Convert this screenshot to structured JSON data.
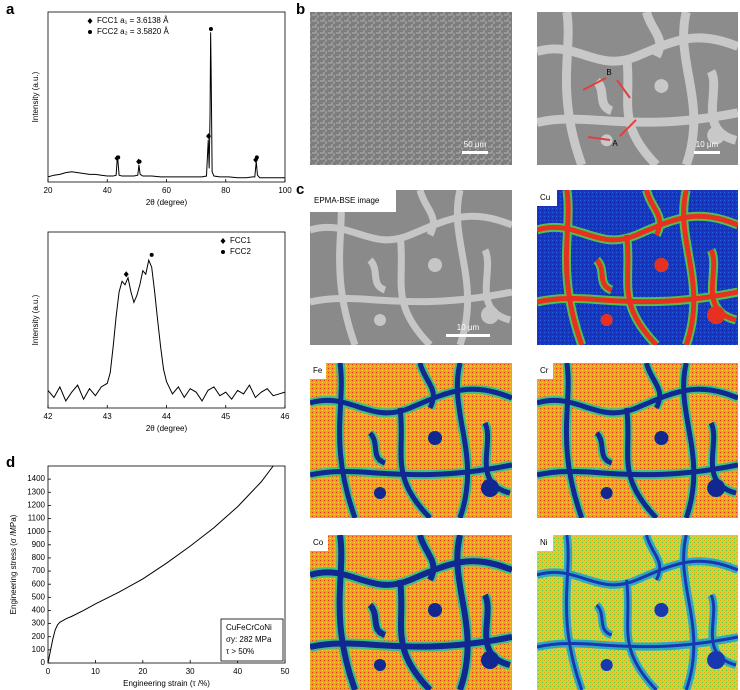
{
  "panel_labels": [
    "a",
    "b",
    "c",
    "d"
  ],
  "micrographs": [
    {
      "scale_bar": "50 μm"
    },
    {
      "scale_bar": "10 μm",
      "annotations": [
        "B",
        "A"
      ]
    }
  ],
  "maps": [
    {
      "label": "EPMA-BSE image",
      "scale_bar": "10 μm"
    },
    {
      "label": "Cu"
    },
    {
      "label": "Fe"
    },
    {
      "label": "Cr"
    },
    {
      "label": "Co"
    },
    {
      "label": "Ni"
    }
  ],
  "chart_data": [
    {
      "type": "line",
      "xlabel": "2θ (degree)",
      "ylabel": "Intensity (a.u.)",
      "color": "#000000",
      "xlim": [
        20,
        100
      ],
      "xticks": [
        20,
        40,
        60,
        80,
        100
      ],
      "ylim": [
        0,
        100
      ],
      "legend": "upper left",
      "x": [
        20,
        22,
        24,
        26,
        28,
        30,
        32,
        34,
        36,
        38,
        40,
        42,
        43,
        43.3,
        43.6,
        44,
        45,
        47,
        49,
        50.3,
        50.7,
        51.1,
        52,
        55,
        58,
        61,
        64,
        67,
        70,
        72,
        73.5,
        74.1,
        74.4,
        74.7,
        74.9,
        75.1,
        75.4,
        76,
        78,
        81,
        84,
        87,
        89,
        89.8,
        90.3,
        90.7,
        91.5,
        94,
        97,
        100
      ],
      "values": [
        3,
        4,
        4.5,
        5.5,
        6,
        5.5,
        5,
        4.5,
        4.5,
        4,
        3.5,
        3.5,
        4,
        12,
        12.5,
        4,
        3.5,
        3.5,
        3.5,
        4,
        10,
        4.5,
        3.5,
        3.5,
        3,
        3,
        3,
        3,
        3,
        3,
        3.5,
        25,
        8,
        40,
        88,
        60,
        6,
        3.5,
        3,
        3,
        2.5,
        2.5,
        3,
        3,
        12,
        4,
        2.5,
        2.5,
        2.5,
        2.5
      ],
      "markers": [
        {
          "name": "FCC1 a₁ = 3.6138 Å",
          "symbol": "diamond",
          "x": [
            43.3,
            50.6,
            74.2,
            90.1
          ],
          "values": [
            14,
            12,
            27,
            13
          ]
        },
        {
          "name": "FCC2 a₂ = 3.5820 Å",
          "symbol": "dot",
          "x": [
            43.7,
            50.9,
            75.0,
            90.5
          ],
          "values": [
            14.5,
            12,
            90,
            14.5
          ]
        }
      ]
    },
    {
      "type": "line",
      "xlabel": "2θ (degree)",
      "ylabel": "Intensity (a.u.)",
      "color": "#000000",
      "xlim": [
        42,
        46
      ],
      "xticks": [
        42,
        43,
        44,
        45,
        46
      ],
      "ylim": [
        0,
        100
      ],
      "legend": "upper right",
      "x": [
        42,
        42.1,
        42.2,
        42.3,
        42.4,
        42.5,
        42.6,
        42.7,
        42.8,
        42.9,
        43,
        43.05,
        43.1,
        43.15,
        43.2,
        43.25,
        43.3,
        43.35,
        43.4,
        43.45,
        43.5,
        43.55,
        43.6,
        43.65,
        43.7,
        43.75,
        43.8,
        43.85,
        43.9,
        43.95,
        44,
        44.1,
        44.2,
        44.3,
        44.4,
        44.5,
        44.6,
        44.7,
        44.8,
        44.9,
        45,
        45.1,
        45.2,
        45.3,
        45.4,
        45.5,
        45.6,
        45.7,
        45.8,
        45.9,
        46
      ],
      "values": [
        10,
        6,
        12,
        4,
        9,
        13,
        5,
        11,
        7,
        12,
        14,
        20,
        35,
        52,
        66,
        72,
        70,
        74,
        66,
        60,
        64,
        70,
        78,
        76,
        84,
        80,
        66,
        50,
        35,
        22,
        15,
        8,
        12,
        6,
        11,
        9,
        4,
        10,
        12,
        7,
        9,
        5,
        10,
        8,
        13,
        6,
        9,
        11,
        7,
        8,
        9
      ],
      "markers": [
        {
          "name": "FCC1",
          "symbol": "diamond",
          "x": [
            43.32
          ],
          "values": [
            76
          ]
        },
        {
          "name": "FCC2",
          "symbol": "dot",
          "x": [
            43.75
          ],
          "values": [
            87
          ]
        }
      ]
    },
    {
      "type": "line",
      "xlabel": "Engineering strain (τ /%)",
      "ylabel": "Engineering stress (σ /MPa)",
      "color": "#000000",
      "xlim": [
        0,
        50
      ],
      "xticks": [
        0,
        10,
        20,
        30,
        40,
        50
      ],
      "ylim": [
        0,
        1500
      ],
      "yticks": [
        0,
        100,
        200,
        300,
        400,
        500,
        600,
        700,
        800,
        900,
        1000,
        1100,
        1200,
        1300,
        1400
      ],
      "x": [
        0,
        0.5,
        1,
        1.5,
        2,
        2.5,
        3,
        4,
        5,
        7.5,
        10,
        15,
        20,
        25,
        30,
        35,
        40,
        45,
        47.5
      ],
      "values": [
        0,
        90,
        180,
        250,
        290,
        310,
        320,
        340,
        355,
        400,
        450,
        540,
        640,
        760,
        890,
        1030,
        1190,
        1380,
        1500
      ],
      "annotations": [
        "CuFeCrCoNi",
        "σy: 282 MPa",
        "τ > 50%"
      ]
    }
  ]
}
